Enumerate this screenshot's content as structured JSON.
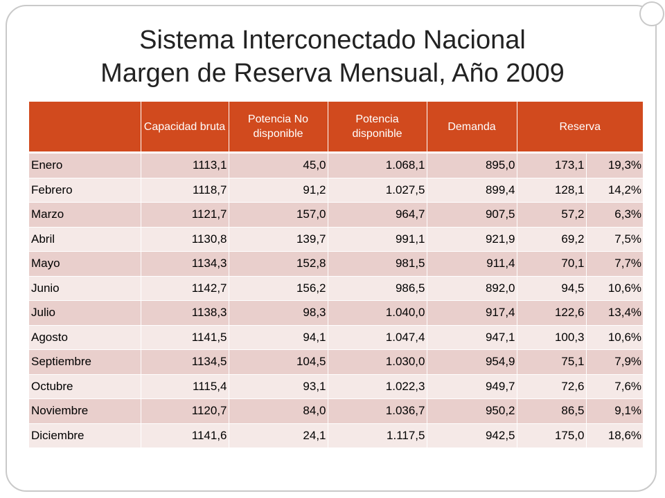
{
  "title": {
    "line1": "Sistema Interconectado Nacional",
    "line2": "Margen de Reserva Mensual, Año 2009"
  },
  "colors": {
    "header": "#d14a1e",
    "row_odd": "#e9cfcc",
    "row_even": "#f5e9e7"
  },
  "table": {
    "headers": {
      "month": "",
      "capacidad": "Capacidad bruta",
      "no_disponible": "Potencia No disponible",
      "disponible": "Potencia disponible",
      "demanda": "Demanda",
      "reserva": "Reserva"
    },
    "rows": [
      {
        "mes": "Enero",
        "capacidad": "1113,1",
        "no_disp": "45,0",
        "disp": "1.068,1",
        "demanda": "895,0",
        "reserva": "173,1",
        "pct": "19,3%"
      },
      {
        "mes": "Febrero",
        "capacidad": "1118,7",
        "no_disp": "91,2",
        "disp": "1.027,5",
        "demanda": "899,4",
        "reserva": "128,1",
        "pct": "14,2%"
      },
      {
        "mes": "Marzo",
        "capacidad": "1121,7",
        "no_disp": "157,0",
        "disp": "964,7",
        "demanda": "907,5",
        "reserva": "57,2",
        "pct": "6,3%"
      },
      {
        "mes": "Abril",
        "capacidad": "1130,8",
        "no_disp": "139,7",
        "disp": "991,1",
        "demanda": "921,9",
        "reserva": "69,2",
        "pct": "7,5%"
      },
      {
        "mes": "Mayo",
        "capacidad": "1134,3",
        "no_disp": "152,8",
        "disp": "981,5",
        "demanda": "911,4",
        "reserva": "70,1",
        "pct": "7,7%"
      },
      {
        "mes": "Junio",
        "capacidad": "1142,7",
        "no_disp": "156,2",
        "disp": "986,5",
        "demanda": "892,0",
        "reserva": "94,5",
        "pct": "10,6%"
      },
      {
        "mes": "Julio",
        "capacidad": "1138,3",
        "no_disp": "98,3",
        "disp": "1.040,0",
        "demanda": "917,4",
        "reserva": "122,6",
        "pct": "13,4%"
      },
      {
        "mes": "Agosto",
        "capacidad": "1141,5",
        "no_disp": "94,1",
        "disp": "1.047,4",
        "demanda": "947,1",
        "reserva": "100,3",
        "pct": "10,6%"
      },
      {
        "mes": "Septiembre",
        "capacidad": "1134,5",
        "no_disp": "104,5",
        "disp": "1.030,0",
        "demanda": "954,9",
        "reserva": "75,1",
        "pct": "7,9%"
      },
      {
        "mes": "Octubre",
        "capacidad": "1115,4",
        "no_disp": "93,1",
        "disp": "1.022,3",
        "demanda": "949,7",
        "reserva": "72,6",
        "pct": "7,6%"
      },
      {
        "mes": "Noviembre",
        "capacidad": "1120,7",
        "no_disp": "84,0",
        "disp": "1.036,7",
        "demanda": "950,2",
        "reserva": "86,5",
        "pct": "9,1%"
      },
      {
        "mes": "Diciembre",
        "capacidad": "1141,6",
        "no_disp": "24,1",
        "disp": "1.117,5",
        "demanda": "942,5",
        "reserva": "175,0",
        "pct": "18,6%"
      }
    ]
  }
}
